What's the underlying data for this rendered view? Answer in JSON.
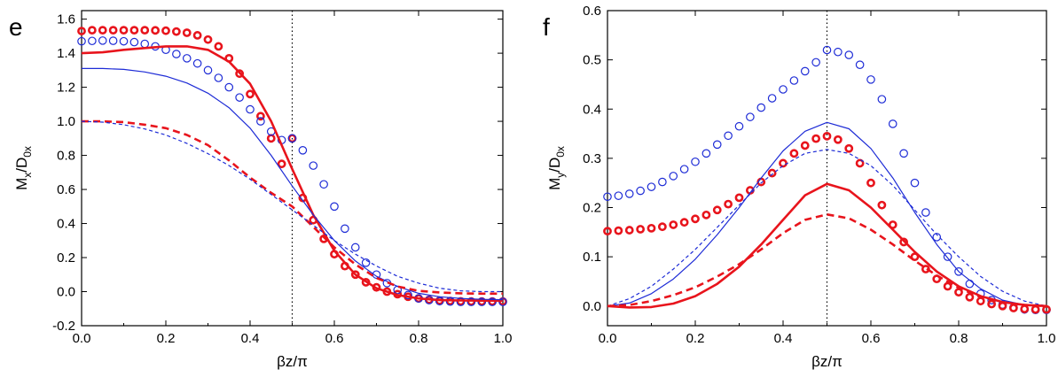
{
  "chart_data": [
    {
      "type": "line",
      "panel_label": "e",
      "xlabel": "βz/π",
      "ylabel": {
        "main": "M",
        "sub1": "x",
        "mid": "/D",
        "sub2": "0x"
      },
      "xlim": [
        0.0,
        1.0
      ],
      "ylim": [
        -0.2,
        1.65
      ],
      "xticks": [
        "0.0",
        "0.2",
        "0.4",
        "0.6",
        "0.8",
        "1.0"
      ],
      "yticks": [
        "-0.2",
        "0.0",
        "0.2",
        "0.4",
        "0.6",
        "0.8",
        "1.0",
        "1.2",
        "1.4",
        "1.6"
      ],
      "vline": 0.5,
      "grid": false,
      "series": [
        {
          "style": "red-circles",
          "color": "#e8141c",
          "x": [
            0.0,
            0.025,
            0.05,
            0.075,
            0.1,
            0.125,
            0.15,
            0.175,
            0.2,
            0.225,
            0.25,
            0.275,
            0.3,
            0.325,
            0.35,
            0.375,
            0.4,
            0.425,
            0.45,
            0.475,
            0.5,
            0.525,
            0.55,
            0.575,
            0.6,
            0.625,
            0.65,
            0.675,
            0.7,
            0.725,
            0.75,
            0.775,
            0.8,
            0.825,
            0.85,
            0.875,
            0.9,
            0.925,
            0.95,
            0.975,
            1.0
          ],
          "y": [
            1.53,
            1.535,
            1.535,
            1.535,
            1.535,
            1.535,
            1.535,
            1.534,
            1.532,
            1.527,
            1.52,
            1.505,
            1.48,
            1.44,
            1.37,
            1.28,
            1.16,
            1.03,
            0.9,
            0.75,
            0.9,
            0.55,
            0.42,
            0.31,
            0.22,
            0.15,
            0.1,
            0.055,
            0.025,
            0.0,
            -0.015,
            -0.03,
            -0.04,
            -0.048,
            -0.053,
            -0.055,
            -0.057,
            -0.058,
            -0.058,
            -0.058,
            -0.058
          ]
        },
        {
          "style": "blue-circles",
          "color": "#1d2bd6",
          "x": [
            0.0,
            0.025,
            0.05,
            0.075,
            0.1,
            0.125,
            0.15,
            0.175,
            0.2,
            0.225,
            0.25,
            0.275,
            0.3,
            0.325,
            0.35,
            0.375,
            0.4,
            0.425,
            0.45,
            0.475,
            0.5,
            0.525,
            0.55,
            0.575,
            0.6,
            0.625,
            0.65,
            0.675,
            0.7,
            0.725,
            0.75,
            0.775,
            0.8,
            0.825,
            0.85,
            0.875,
            0.9,
            0.925,
            0.95,
            0.975,
            1.0
          ],
          "y": [
            1.47,
            1.472,
            1.474,
            1.473,
            1.47,
            1.465,
            1.455,
            1.44,
            1.42,
            1.395,
            1.37,
            1.34,
            1.3,
            1.255,
            1.2,
            1.14,
            1.07,
            1.0,
            0.94,
            0.89,
            0.9,
            0.83,
            0.74,
            0.63,
            0.5,
            0.37,
            0.26,
            0.17,
            0.1,
            0.05,
            0.01,
            -0.02,
            -0.04,
            -0.05,
            -0.056,
            -0.058,
            -0.06,
            -0.06,
            -0.06,
            -0.06,
            -0.06
          ]
        },
        {
          "style": "red-solid",
          "color": "#e8141c",
          "x": [
            0.0,
            0.05,
            0.1,
            0.15,
            0.2,
            0.25,
            0.3,
            0.35,
            0.4,
            0.45,
            0.5,
            0.55,
            0.6,
            0.65,
            0.7,
            0.75,
            0.8,
            0.85,
            0.9,
            0.95,
            1.0
          ],
          "y": [
            1.4,
            1.405,
            1.42,
            1.43,
            1.44,
            1.44,
            1.42,
            1.35,
            1.22,
            1.0,
            0.72,
            0.45,
            0.24,
            0.1,
            0.02,
            -0.02,
            -0.04,
            -0.05,
            -0.052,
            -0.053,
            -0.053
          ]
        },
        {
          "style": "blue-solid",
          "color": "#1d2bd6",
          "x": [
            0.0,
            0.05,
            0.1,
            0.15,
            0.2,
            0.25,
            0.3,
            0.35,
            0.4,
            0.45,
            0.5,
            0.55,
            0.6,
            0.65,
            0.7,
            0.75,
            0.8,
            0.85,
            0.9,
            0.95,
            1.0
          ],
          "y": [
            1.31,
            1.31,
            1.305,
            1.29,
            1.265,
            1.225,
            1.165,
            1.08,
            0.96,
            0.8,
            0.62,
            0.45,
            0.3,
            0.18,
            0.09,
            0.03,
            -0.01,
            -0.03,
            -0.04,
            -0.045,
            -0.047
          ]
        },
        {
          "style": "red-dashed",
          "color": "#e8141c",
          "x": [
            0.0,
            0.05,
            0.1,
            0.15,
            0.2,
            0.25,
            0.3,
            0.35,
            0.4,
            0.45,
            0.5,
            0.55,
            0.6,
            0.65,
            0.7,
            0.75,
            0.8,
            0.85,
            0.9,
            0.95,
            1.0
          ],
          "y": [
            1.0,
            1.0,
            0.995,
            0.98,
            0.96,
            0.92,
            0.86,
            0.77,
            0.67,
            0.58,
            0.5,
            0.38,
            0.26,
            0.16,
            0.08,
            0.03,
            0.005,
            -0.005,
            -0.01,
            -0.012,
            -0.012
          ]
        },
        {
          "style": "blue-dashed",
          "color": "#1d2bd6",
          "x": [
            0.0,
            0.05,
            0.1,
            0.15,
            0.2,
            0.25,
            0.3,
            0.35,
            0.4,
            0.45,
            0.5,
            0.55,
            0.6,
            0.65,
            0.7,
            0.75,
            0.8,
            0.85,
            0.9,
            0.95,
            1.0
          ],
          "y": [
            1.0,
            0.995,
            0.98,
            0.955,
            0.92,
            0.87,
            0.81,
            0.74,
            0.66,
            0.57,
            0.48,
            0.39,
            0.3,
            0.22,
            0.15,
            0.09,
            0.05,
            0.02,
            0.005,
            0.0,
            0.0
          ]
        }
      ]
    },
    {
      "type": "line",
      "panel_label": "f",
      "xlabel": "βz/π",
      "ylabel": {
        "main": "M",
        "sub1": "y",
        "mid": "/D",
        "sub2": "0x"
      },
      "xlim": [
        0.0,
        1.0
      ],
      "ylim": [
        -0.04,
        0.6
      ],
      "xticks": [
        "0.0",
        "0.2",
        "0.4",
        "0.6",
        "0.8",
        "1.0"
      ],
      "yticks": [
        "0.0",
        "0.1",
        "0.2",
        "0.3",
        "0.4",
        "0.5",
        "0.6"
      ],
      "vline": 0.5,
      "grid": false,
      "series": [
        {
          "style": "blue-circles",
          "color": "#1d2bd6",
          "x": [
            0.0,
            0.025,
            0.05,
            0.075,
            0.1,
            0.125,
            0.15,
            0.175,
            0.2,
            0.225,
            0.25,
            0.275,
            0.3,
            0.325,
            0.35,
            0.375,
            0.4,
            0.425,
            0.45,
            0.475,
            0.5,
            0.525,
            0.55,
            0.575,
            0.6,
            0.625,
            0.65,
            0.675,
            0.7,
            0.725,
            0.75,
            0.775,
            0.8,
            0.825,
            0.85,
            0.875,
            0.9,
            0.925,
            0.95,
            0.975,
            1.0
          ],
          "y": [
            0.222,
            0.224,
            0.228,
            0.234,
            0.242,
            0.252,
            0.264,
            0.278,
            0.293,
            0.31,
            0.328,
            0.346,
            0.365,
            0.384,
            0.403,
            0.422,
            0.44,
            0.458,
            0.477,
            0.495,
            0.52,
            0.516,
            0.51,
            0.49,
            0.46,
            0.42,
            0.37,
            0.31,
            0.25,
            0.19,
            0.14,
            0.1,
            0.07,
            0.045,
            0.025,
            0.012,
            0.003,
            -0.003,
            -0.007,
            -0.008,
            -0.008
          ]
        },
        {
          "style": "red-circles",
          "color": "#e8141c",
          "x": [
            0.0,
            0.025,
            0.05,
            0.075,
            0.1,
            0.125,
            0.15,
            0.175,
            0.2,
            0.225,
            0.25,
            0.275,
            0.3,
            0.325,
            0.35,
            0.375,
            0.4,
            0.425,
            0.45,
            0.475,
            0.5,
            0.525,
            0.55,
            0.575,
            0.6,
            0.625,
            0.65,
            0.675,
            0.7,
            0.725,
            0.75,
            0.775,
            0.8,
            0.825,
            0.85,
            0.875,
            0.9,
            0.925,
            0.95,
            0.975,
            1.0
          ],
          "y": [
            0.152,
            0.153,
            0.154,
            0.156,
            0.158,
            0.161,
            0.165,
            0.17,
            0.177,
            0.185,
            0.195,
            0.207,
            0.22,
            0.235,
            0.252,
            0.27,
            0.29,
            0.31,
            0.326,
            0.34,
            0.345,
            0.338,
            0.32,
            0.29,
            0.25,
            0.205,
            0.165,
            0.13,
            0.1,
            0.075,
            0.055,
            0.04,
            0.028,
            0.018,
            0.01,
            0.004,
            0.0,
            -0.004,
            -0.006,
            -0.007,
            -0.007
          ]
        },
        {
          "style": "blue-solid",
          "color": "#1d2bd6",
          "x": [
            0.0,
            0.05,
            0.1,
            0.15,
            0.2,
            0.25,
            0.3,
            0.35,
            0.4,
            0.45,
            0.5,
            0.55,
            0.6,
            0.65,
            0.7,
            0.75,
            0.8,
            0.85,
            0.9,
            0.95,
            1.0
          ],
          "y": [
            0.0,
            0.006,
            0.025,
            0.055,
            0.095,
            0.145,
            0.2,
            0.26,
            0.315,
            0.355,
            0.373,
            0.36,
            0.32,
            0.26,
            0.19,
            0.125,
            0.07,
            0.035,
            0.012,
            0.002,
            0.0
          ]
        },
        {
          "style": "blue-dashed",
          "color": "#1d2bd6",
          "x": [
            0.0,
            0.05,
            0.1,
            0.15,
            0.2,
            0.25,
            0.3,
            0.35,
            0.4,
            0.45,
            0.5,
            0.55,
            0.6,
            0.65,
            0.7,
            0.75,
            0.8,
            0.85,
            0.9,
            0.95,
            1.0
          ],
          "y": [
            0.0,
            0.015,
            0.04,
            0.075,
            0.115,
            0.16,
            0.205,
            0.25,
            0.285,
            0.31,
            0.318,
            0.31,
            0.285,
            0.245,
            0.195,
            0.145,
            0.1,
            0.06,
            0.03,
            0.01,
            0.0
          ]
        },
        {
          "style": "red-solid",
          "color": "#e8141c",
          "x": [
            0.0,
            0.05,
            0.1,
            0.15,
            0.2,
            0.25,
            0.3,
            0.35,
            0.4,
            0.45,
            0.5,
            0.55,
            0.6,
            0.65,
            0.7,
            0.75,
            0.8,
            0.85,
            0.9,
            0.95,
            1.0
          ],
          "y": [
            0.0,
            -0.003,
            -0.002,
            0.005,
            0.02,
            0.045,
            0.08,
            0.125,
            0.175,
            0.225,
            0.248,
            0.235,
            0.2,
            0.155,
            0.11,
            0.07,
            0.04,
            0.02,
            0.008,
            0.002,
            0.0
          ]
        },
        {
          "style": "red-dashed",
          "color": "#e8141c",
          "x": [
            0.0,
            0.05,
            0.1,
            0.15,
            0.2,
            0.25,
            0.3,
            0.35,
            0.4,
            0.45,
            0.5,
            0.55,
            0.6,
            0.65,
            0.7,
            0.75,
            0.8,
            0.85,
            0.9,
            0.95,
            1.0
          ],
          "y": [
            0.0,
            0.002,
            0.01,
            0.022,
            0.038,
            0.06,
            0.085,
            0.115,
            0.148,
            0.175,
            0.186,
            0.178,
            0.155,
            0.125,
            0.092,
            0.062,
            0.037,
            0.018,
            0.007,
            0.002,
            0.0
          ]
        }
      ]
    }
  ]
}
